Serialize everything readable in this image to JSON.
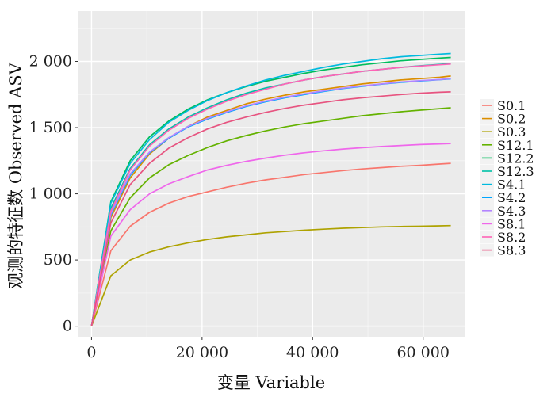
{
  "chart_data": {
    "type": "line",
    "xlabel": "变量 Variable",
    "ylabel": "观测的特征数 Observed ASV",
    "xlim": [
      -2500,
      67500
    ],
    "ylim": [
      -80,
      2380
    ],
    "xticks": [
      0,
      20000,
      40000,
      60000
    ],
    "xtick_labels": [
      "0",
      "20 000",
      "40 000",
      "60 000"
    ],
    "yticks": [
      0,
      500,
      1000,
      1500,
      2000
    ],
    "ytick_labels": [
      "0",
      "500",
      "1 000",
      "1 500",
      "2 000"
    ],
    "grid": true,
    "legend": "right",
    "x": [
      0,
      3500,
      7000,
      10500,
      14000,
      17500,
      21000,
      24500,
      28000,
      31500,
      35000,
      38500,
      42000,
      45500,
      49000,
      52500,
      56000,
      59500,
      63000,
      65000
    ],
    "series": [
      {
        "name": "S0.1",
        "color": "#F8766D",
        "values": [
          0,
          570,
          755,
          860,
          930,
          980,
          1015,
          1050,
          1080,
          1105,
          1125,
          1145,
          1160,
          1175,
          1188,
          1198,
          1208,
          1215,
          1225,
          1230
        ]
      },
      {
        "name": "S0.2",
        "color": "#DB8E00",
        "values": [
          0,
          820,
          1120,
          1300,
          1420,
          1510,
          1580,
          1630,
          1680,
          1715,
          1745,
          1770,
          1790,
          1810,
          1830,
          1845,
          1860,
          1870,
          1880,
          1890
        ]
      },
      {
        "name": "S0.3",
        "color": "#AEA200",
        "values": [
          0,
          380,
          500,
          560,
          600,
          630,
          655,
          675,
          690,
          705,
          715,
          725,
          733,
          740,
          745,
          750,
          753,
          755,
          758,
          760
        ]
      },
      {
        "name": "S12.1",
        "color": "#64B200",
        "values": [
          0,
          720,
          970,
          1120,
          1220,
          1290,
          1350,
          1400,
          1440,
          1475,
          1505,
          1530,
          1550,
          1570,
          1590,
          1605,
          1620,
          1632,
          1643,
          1650
        ]
      },
      {
        "name": "S12.2",
        "color": "#00BD5C",
        "values": [
          0,
          940,
          1250,
          1430,
          1550,
          1640,
          1710,
          1765,
          1810,
          1850,
          1880,
          1910,
          1935,
          1955,
          1975,
          1990,
          2005,
          2015,
          2025,
          2030
        ]
      },
      {
        "name": "S12.3",
        "color": "#00C1A7",
        "values": [
          0,
          890,
          1190,
          1370,
          1490,
          1580,
          1650,
          1710,
          1760,
          1800,
          1830,
          1860,
          1885,
          1905,
          1925,
          1940,
          1955,
          1967,
          1978,
          1985
        ]
      },
      {
        "name": "S4.1",
        "color": "#00BADE",
        "values": [
          0,
          930,
          1230,
          1410,
          1540,
          1630,
          1705,
          1765,
          1815,
          1860,
          1895,
          1925,
          1955,
          1980,
          2000,
          2020,
          2035,
          2045,
          2055,
          2060
        ]
      },
      {
        "name": "S4.2",
        "color": "#00A6FF",
        "values": [
          0,
          840,
          1140,
          1310,
          1420,
          1505,
          1565,
          1615,
          1660,
          1695,
          1725,
          1750,
          1773,
          1795,
          1812,
          1828,
          1842,
          1852,
          1862,
          1868
        ]
      },
      {
        "name": "S4.3",
        "color": "#B385FF",
        "values": [
          0,
          850,
          1150,
          1315,
          1425,
          1510,
          1570,
          1620,
          1665,
          1700,
          1730,
          1755,
          1778,
          1798,
          1815,
          1830,
          1845,
          1855,
          1863,
          1870
        ]
      },
      {
        "name": "S8.1",
        "color": "#EF67EB",
        "values": [
          0,
          680,
          880,
          1000,
          1075,
          1130,
          1180,
          1215,
          1245,
          1270,
          1292,
          1310,
          1325,
          1338,
          1348,
          1357,
          1365,
          1372,
          1377,
          1380
        ]
      },
      {
        "name": "S8.2",
        "color": "#FF63B6",
        "values": [
          0,
          870,
          1180,
          1360,
          1480,
          1570,
          1640,
          1700,
          1750,
          1790,
          1830,
          1860,
          1885,
          1905,
          1925,
          1940,
          1955,
          1965,
          1975,
          1980
        ]
      },
      {
        "name": "S8.3",
        "color": "#E75480",
        "values": [
          0,
          780,
          1070,
          1230,
          1345,
          1425,
          1490,
          1540,
          1580,
          1615,
          1645,
          1670,
          1690,
          1710,
          1725,
          1738,
          1750,
          1760,
          1767,
          1770
        ]
      }
    ]
  }
}
